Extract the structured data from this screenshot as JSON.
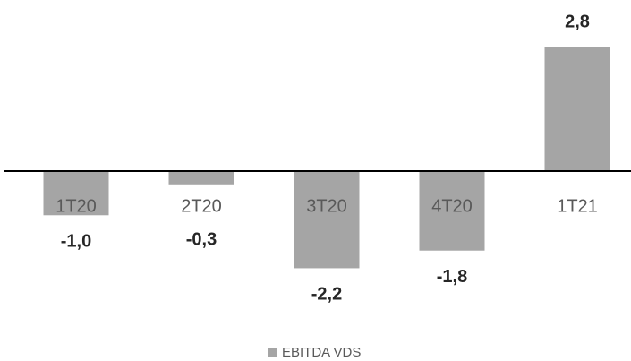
{
  "chart_data": {
    "type": "bar",
    "categories": [
      "1T20",
      "2T20",
      "3T20",
      "4T20",
      "1T21"
    ],
    "series": [
      {
        "name": "EBITDA VDS",
        "color": "#a5a5a5",
        "values": [
          -1.0,
          -0.3,
          -2.2,
          -1.8,
          2.8
        ],
        "value_labels": [
          "-1,0",
          "-0,3",
          "-2,2",
          "-1,8",
          "2,8"
        ]
      }
    ],
    "ylim": [
      -3.5,
      3.5
    ],
    "legend": "bottom"
  }
}
